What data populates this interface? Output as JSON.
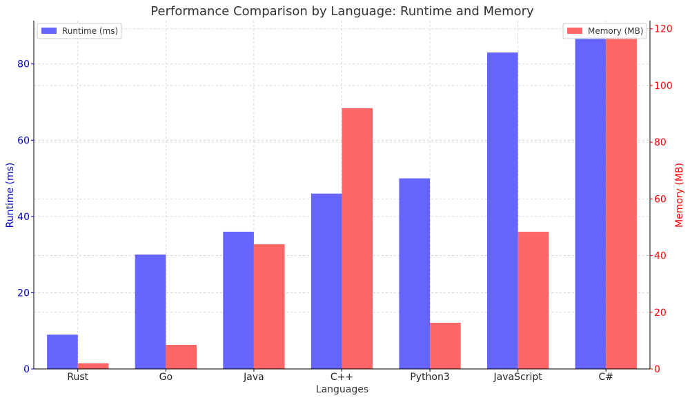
{
  "chart_data": {
    "type": "bar",
    "title": "Performance Comparison by Language: Runtime and Memory",
    "xlabel": "Languages",
    "categories": [
      "Rust",
      "Go",
      "Java",
      "C++",
      "Python3",
      "JavaScript",
      "C#"
    ],
    "series": [
      {
        "name": "Runtime (ms)",
        "axis": "left",
        "color": "#6666ff",
        "values": [
          9,
          30,
          36,
          46,
          50,
          83,
          87
        ]
      },
      {
        "name": "Memory (MB)",
        "axis": "right",
        "color": "#ff6666",
        "values": [
          2,
          8.5,
          44,
          92,
          16.3,
          48.4,
          117
        ]
      }
    ],
    "y_left": {
      "label": "Runtime (ms)",
      "color": "#0000cc",
      "ylim": [
        0,
        91.35
      ],
      "ticks": [
        0,
        20,
        40,
        60,
        80
      ],
      "tick_labels": [
        "0",
        "20",
        "40",
        "60",
        "80"
      ]
    },
    "y_right": {
      "label": "Memory (MB)",
      "color": "#ff0000",
      "ylim": [
        0,
        122.85
      ],
      "ticks": [
        0,
        20,
        40,
        60,
        80,
        100,
        120
      ],
      "tick_labels": [
        "0",
        "20",
        "40",
        "60",
        "80",
        "100",
        "120"
      ]
    },
    "grid": true,
    "legend_left_placement": "top-left",
    "legend_right_placement": "top-right"
  }
}
